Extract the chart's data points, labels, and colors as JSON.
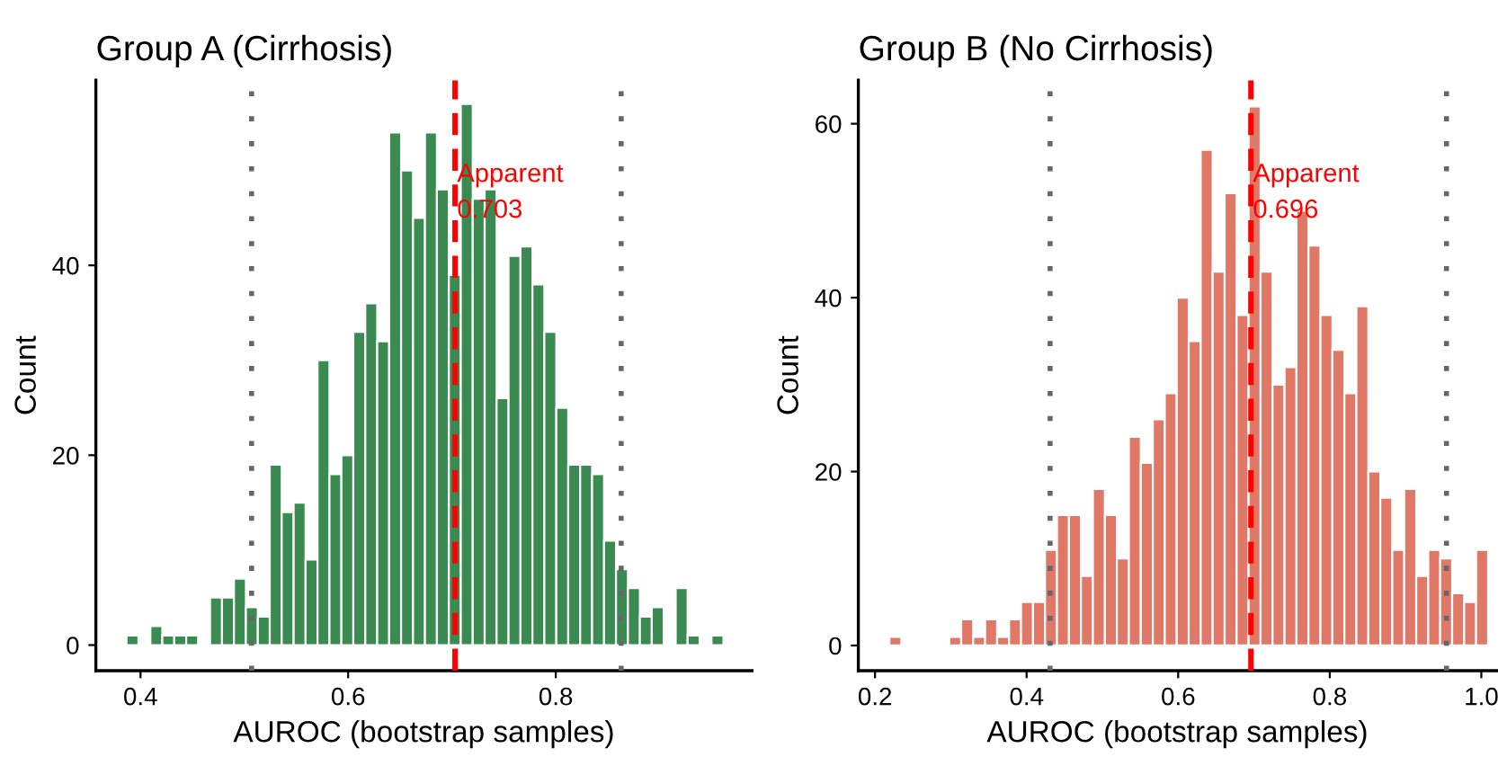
{
  "chart_data": [
    {
      "type": "histogram",
      "title": "Group A (Cirrhosis)",
      "xlabel": "AUROC (bootstrap samples)",
      "ylabel": "Count",
      "color": "#3a8a52",
      "bins": [
        0.3865,
        0.398,
        0.4095,
        0.421,
        0.4325,
        0.444,
        0.4555,
        0.467,
        0.4785,
        0.49,
        0.5015,
        0.513,
        0.5245,
        0.536,
        0.5475,
        0.559,
        0.5705,
        0.582,
        0.5935,
        0.605,
        0.6165,
        0.628,
        0.6395,
        0.651,
        0.6625,
        0.674,
        0.6855,
        0.697,
        0.7085,
        0.72,
        0.7315,
        0.743,
        0.7545,
        0.766,
        0.7775,
        0.789,
        0.8005,
        0.812,
        0.8235,
        0.835,
        0.8465,
        0.858,
        0.8695,
        0.881,
        0.8925,
        0.904,
        0.9155,
        0.927,
        0.9385,
        0.95,
        0.9615
      ],
      "values": [
        1,
        0,
        2,
        1,
        1,
        1,
        0,
        5,
        5,
        7,
        4,
        3,
        19,
        14,
        15,
        9,
        30,
        18,
        20,
        33,
        36,
        32,
        54,
        50,
        45,
        54,
        48,
        39,
        57,
        47,
        48,
        26,
        41,
        42,
        38,
        33,
        25,
        19,
        19,
        18,
        11,
        8,
        6,
        3,
        4,
        0,
        6,
        1,
        0,
        1
      ],
      "xlim": [
        0.357,
        0.989
      ],
      "ylim": [
        -2.7,
        59.5
      ],
      "xticks": [
        0.4,
        0.6,
        0.8
      ],
      "yticks": [
        0,
        20,
        40
      ],
      "grid": false,
      "ref_lines": [
        {
          "axis": "x",
          "value": 0.703,
          "label": "Apparent\n0.703",
          "color": "#ff0000",
          "line_style": "dashed"
        },
        {
          "axis": "x",
          "value": 0.507,
          "color": "#666666",
          "line_style": "dotted"
        },
        {
          "axis": "x",
          "value": 0.863,
          "color": "#666666",
          "line_style": "dotted"
        }
      ]
    },
    {
      "type": "histogram",
      "title": "Group B (No Cirrhosis)",
      "xlabel": "AUROC (bootstrap samples)",
      "ylabel": "Count",
      "color": "#e07868",
      "bins": [
        0.2189,
        0.2347,
        0.2505,
        0.2663,
        0.2821,
        0.2979,
        0.3137,
        0.3295,
        0.3453,
        0.3611,
        0.3769,
        0.3927,
        0.4085,
        0.4243,
        0.4401,
        0.4559,
        0.4717,
        0.4875,
        0.5033,
        0.5191,
        0.5349,
        0.5507,
        0.5665,
        0.5823,
        0.5981,
        0.6139,
        0.6297,
        0.6455,
        0.6613,
        0.6771,
        0.6929,
        0.7087,
        0.7245,
        0.7403,
        0.7561,
        0.7719,
        0.7877,
        0.8035,
        0.8193,
        0.8351,
        0.8509,
        0.8667,
        0.8825,
        0.8983,
        0.9141,
        0.9299,
        0.9457,
        0.9615,
        0.9773,
        0.9931,
        1.0089
      ],
      "values": [
        1,
        0,
        0,
        0,
        0,
        1,
        3,
        1,
        3,
        1,
        3,
        5,
        5,
        11,
        15,
        15,
        8,
        18,
        15,
        10,
        24,
        21,
        26,
        29,
        40,
        35,
        57,
        43,
        52,
        38,
        62,
        43,
        30,
        32,
        50,
        46,
        38,
        34,
        29,
        39,
        20,
        17,
        11,
        18,
        8,
        11,
        10,
        6,
        5,
        11
      ],
      "xlim": [
        0.178,
        1.02
      ],
      "ylim": [
        -2.9,
        65
      ],
      "xticks": [
        0.2,
        0.4,
        0.6,
        0.8,
        {
          "value": 1.0,
          "label": "1.0"
        }
      ],
      "yticks": [
        0,
        20,
        40,
        60
      ],
      "grid": false,
      "ref_lines": [
        {
          "axis": "x",
          "value": 0.696,
          "label": "Apparent\n0.696",
          "color": "#ff0000",
          "line_style": "dashed"
        },
        {
          "axis": "x",
          "value": 0.431,
          "color": "#666666",
          "line_style": "dotted"
        },
        {
          "axis": "x",
          "value": 0.954,
          "color": "#666666",
          "line_style": "dotted"
        }
      ]
    }
  ]
}
